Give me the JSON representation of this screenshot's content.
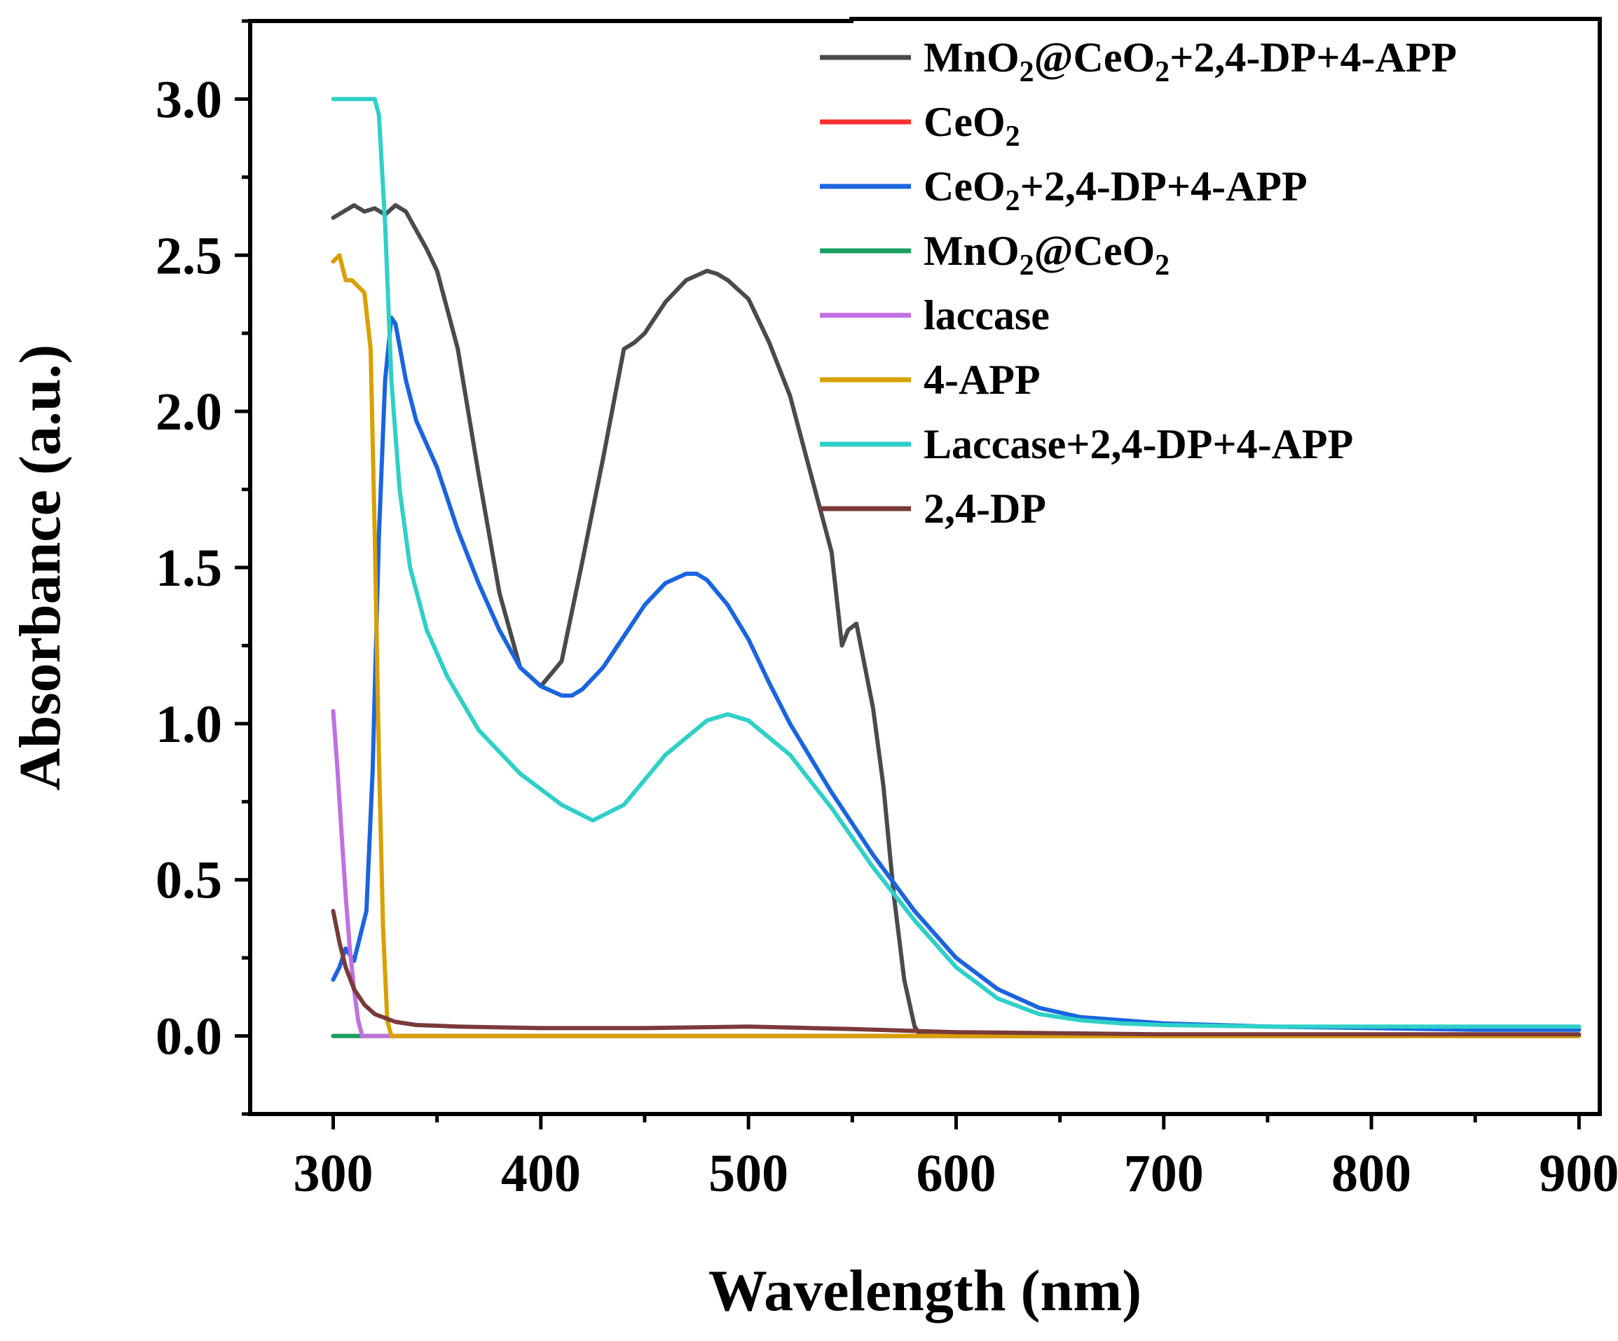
{
  "chart_data": {
    "type": "line",
    "title": "",
    "xlabel": "Wavelength (nm)",
    "ylabel": "Absorbance (a.u.)",
    "xlim": [
      260,
      910
    ],
    "ylim": [
      -0.25,
      3.25
    ],
    "xticks": [
      300,
      400,
      500,
      600,
      700,
      800,
      900
    ],
    "yticks": [
      0.0,
      0.5,
      1.0,
      1.5,
      2.0,
      2.5,
      3.0
    ],
    "xtick_labels": [
      "300",
      "400",
      "500",
      "600",
      "700",
      "800",
      "900"
    ],
    "ytick_labels": [
      "0.0",
      "0.5",
      "1.0",
      "1.5",
      "2.0",
      "2.5",
      "3.0"
    ],
    "grid": false,
    "legend_position": "top-right",
    "series": [
      {
        "name": "MnO2@CeO2+2,4-DP+4-APP",
        "label_parts": [
          [
            "MnO",
            "n"
          ],
          [
            "2",
            "s"
          ],
          [
            "@CeO",
            "n"
          ],
          [
            "2",
            "s"
          ],
          [
            "+2,4-DP+4-APP",
            "n"
          ]
        ],
        "color": "#4a4a4a",
        "x": [
          300,
          305,
          310,
          315,
          320,
          325,
          330,
          335,
          340,
          345,
          350,
          360,
          370,
          380,
          390,
          400,
          410,
          420,
          430,
          440,
          445,
          450,
          455,
          460,
          470,
          480,
          485,
          490,
          500,
          510,
          520,
          530,
          540,
          545,
          548,
          552,
          560,
          565,
          570,
          575,
          580,
          582,
          600,
          700,
          800,
          900
        ],
        "y": [
          2.62,
          2.64,
          2.66,
          2.64,
          2.65,
          2.63,
          2.66,
          2.64,
          2.58,
          2.52,
          2.45,
          2.2,
          1.8,
          1.42,
          1.18,
          1.12,
          1.2,
          1.52,
          1.85,
          2.2,
          2.22,
          2.25,
          2.3,
          2.35,
          2.42,
          2.45,
          2.44,
          2.42,
          2.36,
          2.22,
          2.05,
          1.8,
          1.55,
          1.25,
          1.3,
          1.32,
          1.05,
          0.8,
          0.45,
          0.18,
          0.03,
          0.01,
          0.0,
          0.0,
          0.0,
          0.0
        ],
        "stroke_width": 6
      },
      {
        "name": "CeO2",
        "label_parts": [
          [
            "CeO",
            "n"
          ],
          [
            "2",
            "s"
          ]
        ],
        "color": "#ff3030",
        "x": [
          300,
          900
        ],
        "y": [
          0.0,
          0.0
        ],
        "stroke_width": 6
      },
      {
        "name": "CeO2+2,4-DP+4-APP",
        "label_parts": [
          [
            "CeO",
            "n"
          ],
          [
            "2",
            "s"
          ],
          [
            "+2,4-DP+4-APP",
            "n"
          ]
        ],
        "color": "#1a64e0",
        "x": [
          300,
          303,
          306,
          310,
          313,
          316,
          319,
          322,
          325,
          328,
          330,
          335,
          340,
          350,
          360,
          370,
          380,
          390,
          400,
          410,
          415,
          420,
          430,
          440,
          450,
          460,
          470,
          475,
          480,
          490,
          500,
          510,
          520,
          530,
          540,
          550,
          560,
          580,
          600,
          620,
          640,
          660,
          680,
          700,
          750,
          800,
          850,
          900
        ],
        "y": [
          0.18,
          0.22,
          0.28,
          0.24,
          0.32,
          0.4,
          0.85,
          1.6,
          2.1,
          2.3,
          2.28,
          2.1,
          1.97,
          1.82,
          1.62,
          1.45,
          1.3,
          1.18,
          1.12,
          1.09,
          1.09,
          1.11,
          1.18,
          1.28,
          1.38,
          1.45,
          1.48,
          1.48,
          1.46,
          1.38,
          1.27,
          1.13,
          1.0,
          0.89,
          0.78,
          0.68,
          0.58,
          0.4,
          0.25,
          0.15,
          0.09,
          0.06,
          0.05,
          0.04,
          0.03,
          0.025,
          0.02,
          0.02
        ],
        "stroke_width": 6
      },
      {
        "name": "MnO2@CeO2",
        "label_parts": [
          [
            "MnO",
            "n"
          ],
          [
            "2",
            "s"
          ],
          [
            "@CeO",
            "n"
          ],
          [
            "2",
            "s"
          ]
        ],
        "color": "#1aa060",
        "x": [
          300,
          310,
          314,
          320,
          900
        ],
        "y": [
          0.0,
          0.0,
          0.0,
          0.0,
          0.0
        ],
        "stroke_width": 6
      },
      {
        "name": "laccase",
        "label_parts": [
          [
            "laccase",
            "n"
          ]
        ],
        "color": "#c070e0",
        "x": [
          300,
          302,
          304,
          306,
          308,
          310,
          312,
          314,
          320,
          900
        ],
        "y": [
          1.04,
          0.86,
          0.65,
          0.45,
          0.28,
          0.15,
          0.05,
          0.0,
          0.0,
          0.0
        ],
        "stroke_width": 6
      },
      {
        "name": "4-APP",
        "label_parts": [
          [
            "4-APP",
            "n"
          ]
        ],
        "color": "#d9a000",
        "x": [
          300,
          303,
          306,
          309,
          312,
          315,
          318,
          320,
          322,
          324,
          326,
          328,
          330,
          900
        ],
        "y": [
          2.48,
          2.5,
          2.42,
          2.42,
          2.4,
          2.38,
          2.2,
          1.6,
          0.9,
          0.35,
          0.05,
          0.0,
          0.0,
          0.0
        ],
        "stroke_width": 6
      },
      {
        "name": "Laccase+2,4-DP+4-APP",
        "label_parts": [
          [
            "Laccase+2,4-DP+4-APP",
            "n"
          ]
        ],
        "color": "#2ed0c8",
        "x": [
          300,
          310,
          320,
          322,
          325,
          328,
          332,
          337,
          345,
          355,
          370,
          390,
          410,
          425,
          440,
          460,
          480,
          490,
          500,
          520,
          540,
          560,
          580,
          600,
          620,
          640,
          660,
          680,
          700,
          750,
          800,
          850,
          900
        ],
        "y": [
          3.0,
          3.0,
          3.0,
          2.95,
          2.6,
          2.1,
          1.75,
          1.5,
          1.3,
          1.15,
          0.98,
          0.84,
          0.74,
          0.69,
          0.74,
          0.9,
          1.01,
          1.03,
          1.01,
          0.9,
          0.73,
          0.54,
          0.37,
          0.22,
          0.12,
          0.07,
          0.05,
          0.04,
          0.035,
          0.03,
          0.03,
          0.03,
          0.03
        ],
        "stroke_width": 6
      },
      {
        "name": "2,4-DP",
        "label_parts": [
          [
            "2,4-DP",
            "n"
          ]
        ],
        "color": "#7a3a3a",
        "x": [
          300,
          303,
          306,
          310,
          315,
          320,
          330,
          340,
          360,
          400,
          450,
          500,
          550,
          600,
          700,
          800,
          900
        ],
        "y": [
          0.4,
          0.3,
          0.22,
          0.15,
          0.1,
          0.07,
          0.045,
          0.035,
          0.03,
          0.025,
          0.025,
          0.03,
          0.022,
          0.012,
          0.005,
          0.005,
          0.005
        ],
        "stroke_width": 6
      }
    ]
  }
}
